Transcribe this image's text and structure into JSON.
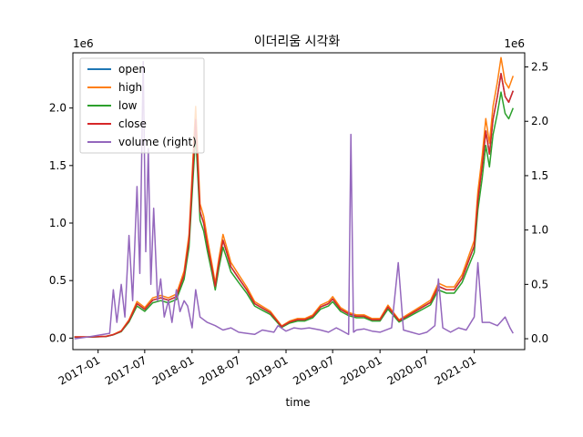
{
  "chart_data": {
    "type": "line",
    "title": "이더리움 시각화",
    "xlabel": "time",
    "ylabel": "",
    "ylabel_right": "",
    "left_offset_text": "1e6",
    "right_offset_text": "1e6",
    "x_range": [
      "2016-09-25",
      "2021-07-16"
    ],
    "ylim_left": [
      -0.1,
      2.48
    ],
    "ylim_right": [
      -0.1,
      2.63
    ],
    "x_ticks": [
      "2017-01",
      "2017-07",
      "2018-01",
      "2018-07",
      "2019-01",
      "2019-07",
      "2020-01",
      "2020-07",
      "2021-01"
    ],
    "x_tick_dates": [
      "2017-01-01",
      "2017-07-01",
      "2018-01-01",
      "2018-07-01",
      "2019-01-01",
      "2019-07-01",
      "2020-01-01",
      "2020-07-01",
      "2021-01-01"
    ],
    "y_ticks_left": [
      0.0,
      0.5,
      1.0,
      1.5,
      2.0
    ],
    "y_ticks_left_labels": [
      "0.0",
      "0.5",
      "1.0",
      "1.5",
      "2.0"
    ],
    "y_ticks_right": [
      0.0,
      0.5,
      1.0,
      1.5,
      2.0,
      2.5
    ],
    "y_ticks_right_labels": [
      "0.0",
      "0.5",
      "1.0",
      "1.5",
      "2.0",
      "2.5"
    ],
    "grid": false,
    "legend_position": "top-left",
    "legend": [
      "open",
      "high",
      "low",
      "close",
      "volume (right)"
    ],
    "colors": {
      "open": "#1f77b4",
      "high": "#ff7f0e",
      "low": "#2ca02c",
      "close": "#d62728",
      "volume": "#9467bd"
    },
    "price_series": {
      "x": [
        "2016-10-01",
        "2016-12-01",
        "2017-02-01",
        "2017-03-01",
        "2017-04-01",
        "2017-05-01",
        "2017-06-01",
        "2017-07-01",
        "2017-08-01",
        "2017-09-01",
        "2017-10-01",
        "2017-11-01",
        "2017-12-01",
        "2017-12-20",
        "2018-01-05",
        "2018-01-15",
        "2018-02-01",
        "2018-02-15",
        "2018-03-01",
        "2018-03-20",
        "2018-04-01",
        "2018-04-15",
        "2018-05-01",
        "2018-05-15",
        "2018-06-01",
        "2018-07-01",
        "2018-08-01",
        "2018-09-01",
        "2018-10-01",
        "2018-11-01",
        "2018-12-15",
        "2019-01-15",
        "2019-02-15",
        "2019-03-15",
        "2019-04-15",
        "2019-05-15",
        "2019-06-15",
        "2019-07-01",
        "2019-08-01",
        "2019-09-01",
        "2019-10-01",
        "2019-11-01",
        "2019-12-01",
        "2020-01-01",
        "2020-02-01",
        "2020-03-15",
        "2020-04-15",
        "2020-05-15",
        "2020-06-15",
        "2020-07-15",
        "2020-08-15",
        "2020-09-15",
        "2020-10-15",
        "2020-11-15",
        "2020-12-15",
        "2021-01-01",
        "2021-01-15",
        "2021-02-01",
        "2021-02-15",
        "2021-03-01",
        "2021-03-15",
        "2021-04-01",
        "2021-04-15",
        "2021-05-01",
        "2021-05-15",
        "2021-06-01"
      ],
      "close": [
        0.01,
        0.01,
        0.015,
        0.03,
        0.06,
        0.15,
        0.3,
        0.25,
        0.33,
        0.35,
        0.33,
        0.36,
        0.55,
        0.85,
        1.5,
        1.9,
        1.1,
        1.0,
        0.82,
        0.6,
        0.45,
        0.65,
        0.85,
        0.75,
        0.62,
        0.52,
        0.42,
        0.3,
        0.26,
        0.22,
        0.1,
        0.14,
        0.16,
        0.16,
        0.19,
        0.27,
        0.3,
        0.34,
        0.25,
        0.21,
        0.19,
        0.19,
        0.16,
        0.16,
        0.27,
        0.15,
        0.19,
        0.23,
        0.27,
        0.31,
        0.45,
        0.42,
        0.42,
        0.52,
        0.7,
        0.8,
        1.2,
        1.5,
        1.8,
        1.6,
        1.9,
        2.1,
        2.3,
        2.1,
        2.05,
        2.15
      ]
    },
    "volume_series": {
      "x": [
        "2016-10-01",
        "2016-12-01",
        "2017-02-15",
        "2017-03-01",
        "2017-03-15",
        "2017-04-01",
        "2017-04-15",
        "2017-05-01",
        "2017-05-15",
        "2017-06-01",
        "2017-06-12",
        "2017-06-25",
        "2017-07-05",
        "2017-07-15",
        "2017-07-25",
        "2017-08-05",
        "2017-08-20",
        "2017-09-01",
        "2017-09-15",
        "2017-10-01",
        "2017-10-15",
        "2017-11-01",
        "2017-11-15",
        "2017-12-01",
        "2017-12-15",
        "2018-01-01",
        "2018-01-15",
        "2018-02-01",
        "2018-03-01",
        "2018-04-01",
        "2018-05-01",
        "2018-06-01",
        "2018-07-01",
        "2018-08-01",
        "2018-09-01",
        "2018-10-01",
        "2018-11-15",
        "2018-12-01",
        "2019-01-01",
        "2019-02-01",
        "2019-03-01",
        "2019-04-01",
        "2019-05-15",
        "2019-06-15",
        "2019-07-15",
        "2019-08-01",
        "2019-09-01",
        "2019-09-10",
        "2019-09-20",
        "2019-10-01",
        "2019-11-01",
        "2019-12-01",
        "2020-01-01",
        "2020-02-15",
        "2020-03-12",
        "2020-04-01",
        "2020-05-01",
        "2020-06-01",
        "2020-07-01",
        "2020-08-01",
        "2020-08-15",
        "2020-09-01",
        "2020-10-01",
        "2020-11-01",
        "2020-12-01",
        "2021-01-01",
        "2021-01-15",
        "2021-02-01",
        "2021-03-01",
        "2021-04-01",
        "2021-05-01",
        "2021-05-20",
        "2021-06-01"
      ],
      "values": [
        0.0,
        0.02,
        0.05,
        0.45,
        0.15,
        0.5,
        0.2,
        0.95,
        0.35,
        1.4,
        0.6,
        2.55,
        0.8,
        1.75,
        0.5,
        1.2,
        0.35,
        0.55,
        0.2,
        0.35,
        0.15,
        0.45,
        0.25,
        0.35,
        0.3,
        0.1,
        0.45,
        0.2,
        0.15,
        0.12,
        0.08,
        0.1,
        0.06,
        0.05,
        0.04,
        0.08,
        0.06,
        0.12,
        0.07,
        0.1,
        0.09,
        0.1,
        0.08,
        0.06,
        0.1,
        0.08,
        0.04,
        1.88,
        0.06,
        0.08,
        0.09,
        0.07,
        0.06,
        0.1,
        0.7,
        0.08,
        0.06,
        0.04,
        0.06,
        0.12,
        0.55,
        0.1,
        0.06,
        0.1,
        0.08,
        0.2,
        0.7,
        0.15,
        0.15,
        0.12,
        0.2,
        0.1,
        0.05
      ]
    }
  }
}
